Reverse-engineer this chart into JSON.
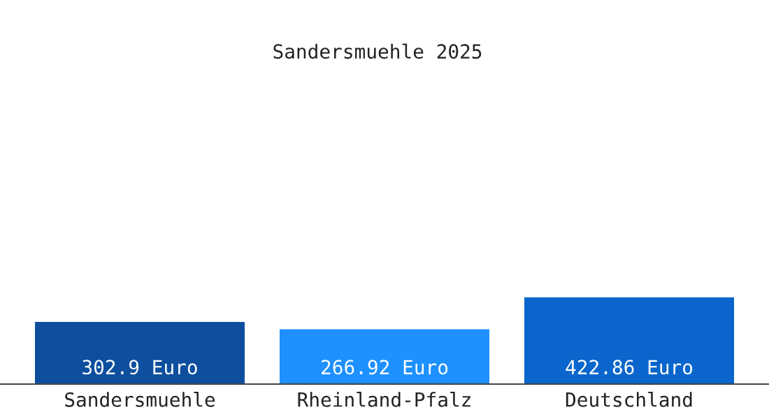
{
  "chart_data": {
    "type": "bar",
    "title": "Sandersmuehle 2025",
    "categories": [
      "Sandersmuehle",
      "Rheinland-Pfalz",
      "Deutschland"
    ],
    "values": [
      302.9,
      266.92,
      422.86
    ],
    "colors": [
      "#0d4f9e",
      "#1e90ff",
      "#0a66cc"
    ],
    "value_labels": [
      "302.9 Euro",
      "266.92 Euro",
      "422.86 Euro"
    ],
    "grid": false,
    "legend": false
  }
}
